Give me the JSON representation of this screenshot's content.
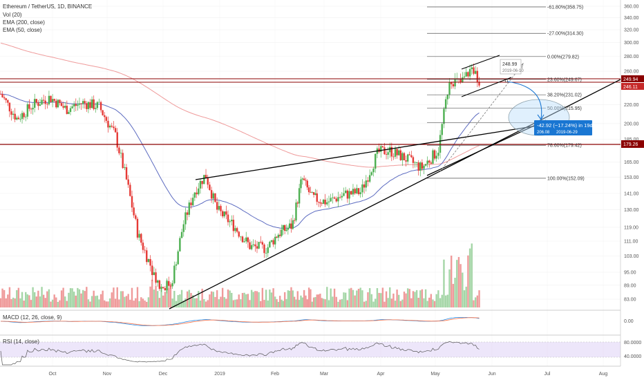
{
  "header": {
    "title": "Ethereum / TetherUS, 1D, BINANCE",
    "indicators": [
      "Vol (20)",
      "EMA (200, close)",
      "EMA (50, close)"
    ]
  },
  "colors": {
    "up": "#26a69a",
    "up_candle": "#4caf50",
    "down": "#e53935",
    "ema200": "#ef9a9a",
    "ema50": "#5c6bc0",
    "level_line": "#8b0000",
    "price_tag": "#8b0000",
    "vol_up": "#a5d6a7",
    "vol_down": "#ef9a9a",
    "rsi_band": "#e1d5f7",
    "macd": "#1e88e5",
    "signal": "#ff7043",
    "measure": "#1976d2"
  },
  "price_axis": {
    "ticks": [
      "360.00",
      "340.00",
      "320.00",
      "300.00",
      "280.00",
      "260.00",
      "240.00",
      "220.00",
      "200.00",
      "185.00",
      "165.00",
      "153.00",
      "141.00",
      "130.00",
      "119.00",
      "111.00",
      "103.00",
      "95.00",
      "89.00",
      "83.00"
    ],
    "current_price": "249.94",
    "tag_price": "246.11",
    "level_tag": "179.26"
  },
  "time_axis": {
    "labels": [
      "Oct",
      "Nov",
      "Dec",
      "2019",
      "Feb",
      "Mar",
      "Apr",
      "May",
      "Jun",
      "Jul",
      "Aug"
    ]
  },
  "fib": [
    {
      "label": "-61.80%(358.75)",
      "price": 358.75
    },
    {
      "label": "-27.00%(314.30)",
      "price": 314.3
    },
    {
      "label": "0.00%(279.82)",
      "price": 279.82
    },
    {
      "label": "23.60%(249.67)",
      "price": 249.67
    },
    {
      "label": "38.20%(231.02)",
      "price": 231.02
    },
    {
      "label": "50.00%(215.95)",
      "price": 215.95
    },
    {
      "label": "61.80%(200.88)",
      "price": 200.88
    },
    {
      "label": "78.60%(179.42)",
      "price": 179.42
    },
    {
      "label": "100.00%(152.09)",
      "price": 152.09
    }
  ],
  "annotations": {
    "peak_label": "248.99",
    "peak_date": "2019-06-10",
    "measure_line1": "-42.92 (−17.24%) in 19d",
    "measure_price": "206.08",
    "measure_date": "2019-06-29"
  },
  "macd": {
    "label": "MACD (12, 26, close, 9)",
    "tick": "0.00"
  },
  "rsi": {
    "label": "RSI (14, close)",
    "ticks": [
      "80.0000",
      "40.0000"
    ]
  },
  "chart_data": {
    "type": "candlestick",
    "title": "Ethereum / TetherUS, 1D, BINANCE",
    "x_labels": [
      "Oct",
      "Nov",
      "Dec",
      "2019",
      "Feb",
      "Mar",
      "Apr",
      "May",
      "Jun",
      "Jul",
      "Aug"
    ],
    "price_scale": "log",
    "ylim": [
      80,
      370
    ],
    "close_path": [
      {
        "x": 0.0,
        "v": 232
      },
      {
        "x": 0.3,
        "v": 205
      },
      {
        "x": 0.6,
        "v": 220
      },
      {
        "x": 0.9,
        "v": 228
      },
      {
        "x": 1.2,
        "v": 215
      },
      {
        "x": 1.5,
        "v": 222
      },
      {
        "x": 1.8,
        "v": 218
      },
      {
        "x": 2.1,
        "v": 188
      },
      {
        "x": 2.3,
        "v": 150
      },
      {
        "x": 2.5,
        "v": 115
      },
      {
        "x": 2.7,
        "v": 100
      },
      {
        "x": 2.9,
        "v": 88
      },
      {
        "x": 3.1,
        "v": 90
      },
      {
        "x": 3.3,
        "v": 120
      },
      {
        "x": 3.5,
        "v": 142
      },
      {
        "x": 3.7,
        "v": 155
      },
      {
        "x": 3.9,
        "v": 130
      },
      {
        "x": 4.2,
        "v": 120
      },
      {
        "x": 4.5,
        "v": 108
      },
      {
        "x": 4.8,
        "v": 107
      },
      {
        "x": 5.0,
        "v": 115
      },
      {
        "x": 5.3,
        "v": 120
      },
      {
        "x": 5.5,
        "v": 152
      },
      {
        "x": 5.7,
        "v": 138
      },
      {
        "x": 6.0,
        "v": 135
      },
      {
        "x": 6.3,
        "v": 140
      },
      {
        "x": 6.6,
        "v": 142
      },
      {
        "x": 6.9,
        "v": 173
      },
      {
        "x": 7.1,
        "v": 175
      },
      {
        "x": 7.4,
        "v": 168
      },
      {
        "x": 7.7,
        "v": 160
      },
      {
        "x": 8.0,
        "v": 175
      },
      {
        "x": 8.2,
        "v": 250
      },
      {
        "x": 8.4,
        "v": 245
      },
      {
        "x": 8.6,
        "v": 265
      },
      {
        "x": 8.75,
        "v": 246
      }
    ],
    "current_close": 246.11,
    "lines": [
      {
        "name": "Vol (20)"
      },
      {
        "name": "EMA (200, close)"
      },
      {
        "name": "EMA (50, close)"
      }
    ]
  }
}
